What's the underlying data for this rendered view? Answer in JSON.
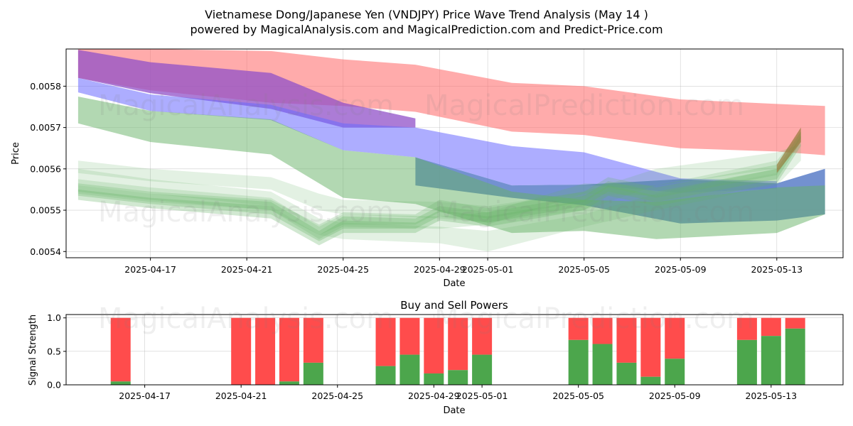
{
  "figure": {
    "title_line1": "Vietnamese Dong/Japanese Yen (VNDJPY) Price Wave Trend Analysis (May 14 )",
    "title_line2": "powered by MagicalAnalysis.com and MagicalPrediction.com and Predict-Price.com",
    "watermarks": [
      "MagicalAnalysis.com",
      "MagicalPrediction.com"
    ]
  },
  "chart_data": [
    {
      "type": "area",
      "title": "",
      "xlabel": "Date",
      "ylabel": "Price",
      "xlim": [
        "2025-04-13T12:00",
        "2025-05-15T18:00"
      ],
      "ylim": [
        0.005385,
        0.00589
      ],
      "x_ticks": [
        "2025-04-17",
        "2025-04-21",
        "2025-04-25",
        "2025-04-29",
        "2025-05-01",
        "2025-05-05",
        "2025-05-09",
        "2025-05-13"
      ],
      "y_ticks": [
        0.0054,
        0.0055,
        0.0056,
        0.0057,
        0.0058
      ],
      "grid": true,
      "bands": [
        {
          "color": "#ff6666",
          "opacity": 0.55,
          "x": [
            "2025-04-14",
            "2025-04-17",
            "2025-04-22",
            "2025-04-25",
            "2025-04-28",
            "2025-05-02",
            "2025-05-05",
            "2025-05-09",
            "2025-05-13",
            "2025-05-15"
          ],
          "upper": [
            0.0059,
            0.00589,
            0.005885,
            0.005865,
            0.005852,
            0.005808,
            0.0058,
            0.005768,
            0.005757,
            0.005752
          ],
          "lower": [
            0.00582,
            0.00579,
            0.00576,
            0.005752,
            0.005738,
            0.00569,
            0.005682,
            0.00565,
            0.005642,
            0.005633
          ]
        },
        {
          "color": "#9050c8",
          "opacity": 0.75,
          "x": [
            "2025-04-14",
            "2025-04-17",
            "2025-04-22",
            "2025-04-25",
            "2025-04-28"
          ],
          "upper": [
            0.005888,
            0.005858,
            0.005832,
            0.00576,
            0.005722
          ],
          "lower": [
            0.00582,
            0.005783,
            0.005745,
            0.0057,
            0.0057
          ]
        },
        {
          "color": "#6a6aff",
          "opacity": 0.55,
          "x": [
            "2025-04-14",
            "2025-04-17",
            "2025-04-22",
            "2025-04-25",
            "2025-04-28",
            "2025-05-02",
            "2025-05-05",
            "2025-05-09",
            "2025-05-13"
          ],
          "upper": [
            0.00582,
            0.00578,
            0.005755,
            0.00571,
            0.0057,
            0.005655,
            0.00564,
            0.005577,
            0.00557
          ],
          "lower": [
            0.005785,
            0.00574,
            0.005718,
            0.005645,
            0.005628,
            0.00556,
            0.005562,
            0.005542,
            0.005552
          ]
        },
        {
          "color": "#5a7ec8",
          "opacity": 0.85,
          "x": [
            "2025-04-28",
            "2025-05-02",
            "2025-05-05",
            "2025-05-09",
            "2025-05-13",
            "2025-05-15"
          ],
          "upper": [
            0.005628,
            0.00556,
            0.005562,
            0.005575,
            0.005565,
            0.0056
          ],
          "lower": [
            0.00556,
            0.00553,
            0.005512,
            0.005468,
            0.005475,
            0.00549
          ]
        },
        {
          "color": "#66b266",
          "opacity": 0.5,
          "x": [
            "2025-04-14",
            "2025-04-17",
            "2025-04-22",
            "2025-04-25",
            "2025-04-28",
            "2025-05-02",
            "2025-05-05",
            "2025-05-08",
            "2025-05-13",
            "2025-05-15"
          ],
          "upper": [
            0.005775,
            0.00574,
            0.00572,
            0.005645,
            0.005628,
            0.005545,
            0.005525,
            0.00552,
            0.005555,
            0.00556
          ],
          "lower": [
            0.00571,
            0.005665,
            0.005635,
            0.00553,
            0.005515,
            0.005445,
            0.00545,
            0.00543,
            0.005445,
            0.00549
          ]
        },
        {
          "color": "#66b266",
          "opacity": 0.18,
          "x": [
            "2025-04-14",
            "2025-04-17",
            "2025-04-22",
            "2025-04-24",
            "2025-04-25",
            "2025-04-29",
            "2025-05-01",
            "2025-05-05",
            "2025-05-08",
            "2025-05-13",
            "2025-05-14"
          ],
          "upper": [
            0.00562,
            0.0056,
            0.00558,
            0.00554,
            0.005525,
            0.00552,
            0.00551,
            0.005545,
            0.0056,
            0.00564,
            0.00566
          ],
          "lower": [
            0.00559,
            0.00557,
            0.00555,
            0.0055,
            0.00549,
            0.00548,
            0.00547,
            0.0055,
            0.00556,
            0.0056,
            0.00564
          ]
        },
        {
          "color": "#66b266",
          "opacity": 0.18,
          "x": [
            "2025-04-14",
            "2025-04-17",
            "2025-04-22",
            "2025-04-24",
            "2025-04-25",
            "2025-04-29",
            "2025-05-01",
            "2025-05-05",
            "2025-05-08",
            "2025-05-13",
            "2025-05-14"
          ],
          "upper": [
            0.0056,
            0.005575,
            0.005545,
            0.00548,
            0.00547,
            0.00546,
            0.00545,
            0.00549,
            0.00554,
            0.0056,
            0.00564
          ],
          "lower": [
            0.00556,
            0.00554,
            0.00551,
            0.00544,
            0.00543,
            0.00542,
            0.0054,
            0.00546,
            0.0055,
            0.00556,
            0.00562
          ]
        },
        {
          "color": "#66b266",
          "opacity": 0.2,
          "x": [
            "2025-04-14",
            "2025-04-17",
            "2025-04-22",
            "2025-04-24",
            "2025-04-25",
            "2025-04-29",
            "2025-05-01",
            "2025-05-05",
            "2025-05-08",
            "2025-05-13",
            "2025-05-14"
          ],
          "upper": [
            0.005575,
            0.005555,
            0.00553,
            0.00546,
            0.00549,
            0.005485,
            0.005495,
            0.005565,
            0.00556,
            0.00562,
            0.00569
          ],
          "lower": [
            0.00554,
            0.00552,
            0.0055,
            0.00543,
            0.00546,
            0.005455,
            0.005465,
            0.00554,
            0.005535,
            0.00559,
            0.00567
          ]
        },
        {
          "color": "#66b266",
          "opacity": 0.25,
          "x": [
            "2025-04-14",
            "2025-04-17",
            "2025-04-22",
            "2025-04-24",
            "2025-04-25",
            "2025-04-28",
            "2025-04-29",
            "2025-05-01",
            "2025-05-05",
            "2025-05-06",
            "2025-05-08",
            "2025-05-13",
            "2025-05-14"
          ],
          "upper": [
            0.005565,
            0.005545,
            0.005525,
            0.005465,
            0.005495,
            0.00549,
            0.005525,
            0.005505,
            0.005545,
            0.00558,
            0.005555,
            0.00561,
            0.0057
          ],
          "lower": [
            0.005545,
            0.005525,
            0.0055,
            0.00544,
            0.005465,
            0.005465,
            0.005495,
            0.00548,
            0.00552,
            0.005555,
            0.00553,
            0.005585,
            0.005675
          ]
        },
        {
          "color": "#66b266",
          "opacity": 0.3,
          "x": [
            "2025-04-14",
            "2025-04-17",
            "2025-04-22",
            "2025-04-24",
            "2025-04-25",
            "2025-04-28",
            "2025-04-29",
            "2025-05-01",
            "2025-05-05",
            "2025-05-06",
            "2025-05-08",
            "2025-05-13",
            "2025-05-14"
          ],
          "upper": [
            0.00556,
            0.00554,
            0.00552,
            0.00545,
            0.005485,
            0.00548,
            0.00551,
            0.005495,
            0.005535,
            0.00557,
            0.005545,
            0.0056,
            0.00569
          ],
          "lower": [
            0.005535,
            0.005515,
            0.00549,
            0.005425,
            0.005455,
            0.005455,
            0.005485,
            0.00547,
            0.00551,
            0.005545,
            0.00552,
            0.005575,
            0.005665
          ]
        },
        {
          "color": "#66b266",
          "opacity": 0.3,
          "x": [
            "2025-04-14",
            "2025-04-17",
            "2025-04-22",
            "2025-04-24",
            "2025-04-25",
            "2025-04-28",
            "2025-04-29",
            "2025-05-01",
            "2025-05-05",
            "2025-05-06",
            "2025-05-08",
            "2025-05-13",
            "2025-05-14"
          ],
          "upper": [
            0.00555,
            0.00553,
            0.00551,
            0.00544,
            0.005475,
            0.00547,
            0.0055,
            0.005485,
            0.005525,
            0.00556,
            0.005535,
            0.00559,
            0.00568
          ],
          "lower": [
            0.005525,
            0.005505,
            0.00548,
            0.005415,
            0.005445,
            0.005445,
            0.005475,
            0.00546,
            0.0055,
            0.005535,
            0.00551,
            0.005565,
            0.005655
          ]
        },
        {
          "color": "#9b6a2a",
          "opacity": 0.55,
          "x": [
            "2025-05-13",
            "2025-05-14"
          ],
          "upper": [
            0.00561,
            0.0057
          ],
          "lower": [
            0.00559,
            0.005665
          ]
        }
      ]
    },
    {
      "type": "bar",
      "title": "Buy and Sell Powers",
      "xlabel": "Date",
      "ylabel": "Signal Strength",
      "ylim": [
        0,
        1.05
      ],
      "y_ticks": [
        "0.0",
        "0.5",
        "1.0"
      ],
      "x_ticks": [
        "2025-04-17",
        "2025-04-21",
        "2025-04-25",
        "2025-04-29",
        "2025-05-01",
        "2025-05-05",
        "2025-05-09",
        "2025-05-13"
      ],
      "grid": true,
      "categories": [
        "2025-04-16",
        "2025-04-21",
        "2025-04-22",
        "2025-04-23",
        "2025-04-24",
        "2025-04-27",
        "2025-04-28",
        "2025-04-29",
        "2025-04-30",
        "2025-05-01",
        "2025-05-05",
        "2025-05-06",
        "2025-05-07",
        "2025-05-08",
        "2025-05-09",
        "2025-05-12",
        "2025-05-13",
        "2025-05-14"
      ],
      "series": [
        {
          "color": "#4ca64c",
          "values": [
            0.05,
            0.0,
            0.0,
            0.05,
            0.33,
            0.28,
            0.45,
            0.17,
            0.22,
            0.45,
            0.67,
            0.61,
            0.33,
            0.12,
            0.39,
            0.67,
            0.73,
            0.84
          ]
        },
        {
          "color": "#ff4c4c",
          "values": [
            0.95,
            1.0,
            1.0,
            0.95,
            0.67,
            0.72,
            0.55,
            0.83,
            0.78,
            0.55,
            0.33,
            0.39,
            0.67,
            0.88,
            0.61,
            0.33,
            0.27,
            0.16
          ]
        }
      ]
    }
  ]
}
